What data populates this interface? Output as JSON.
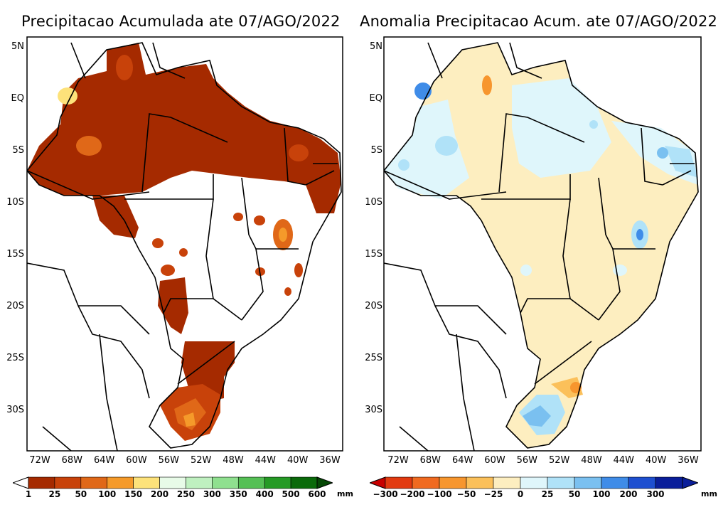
{
  "left": {
    "title": "Precipitacao Acumulada ate 07/AGO/2022",
    "unit": "mm",
    "colorbar": {
      "labels": [
        "1",
        "25",
        "50",
        "100",
        "150",
        "200",
        "250",
        "300",
        "350",
        "400",
        "500",
        "600"
      ],
      "colors": [
        "#ffffff",
        "#a52a00",
        "#c8420a",
        "#e06818",
        "#f59a2a",
        "#fde27a",
        "#e8fbe8",
        "#bff0c0",
        "#8fe08f",
        "#55c055",
        "#259a25",
        "#0a6a0a",
        "#054805"
      ]
    }
  },
  "right": {
    "title": "Anomalia Precipitacao Acum. ate 07/AGO/2022",
    "unit": "mm",
    "colorbar": {
      "labels": [
        "−300",
        "−200",
        "−100",
        "−50",
        "−25",
        "0",
        "25",
        "50",
        "100",
        "200",
        "300"
      ],
      "colors": [
        "#c80000",
        "#e23a10",
        "#f06a20",
        "#f7962e",
        "#fbc05a",
        "#fdeec0",
        "#dff6fb",
        "#b0e2f8",
        "#7ac0f0",
        "#3f8ce8",
        "#1e4fd0",
        "#0a1e9a"
      ]
    }
  },
  "lat_ticks": [
    "5N",
    "EQ",
    "5S",
    "10S",
    "15S",
    "20S",
    "25S",
    "30S"
  ],
  "lon_ticks": [
    "72W",
    "68W",
    "64W",
    "60W",
    "56W",
    "52W",
    "48W",
    "44W",
    "40W",
    "36W"
  ]
}
